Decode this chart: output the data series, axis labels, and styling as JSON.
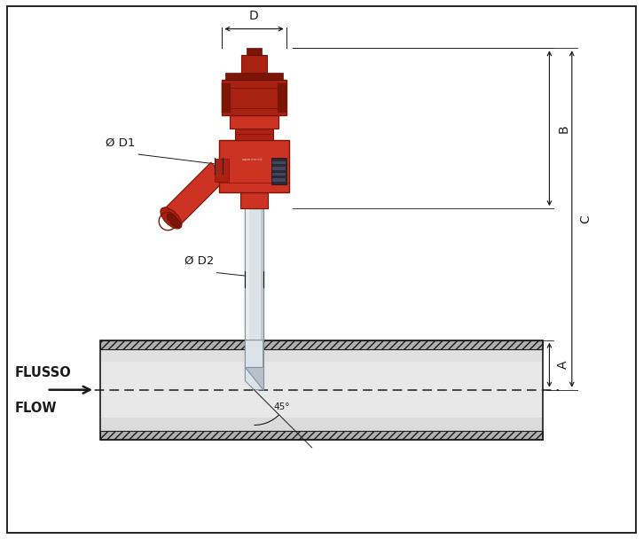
{
  "bg_color": "#ffffff",
  "line_color": "#1a1a1a",
  "dim_line_color": "#1a1a1a",
  "pipe_fill_light": "#e8e8e8",
  "pipe_fill_mid": "#d0d0d0",
  "pipe_stroke": "#444444",
  "red_bright": "#cc3322",
  "red_mid": "#aa2211",
  "red_dark": "#7a1508",
  "red_shadow": "#5a0f05",
  "silver_light": "#dde2e6",
  "silver_mid": "#b8c0c8",
  "silver_dark": "#8090a0",
  "hatch_bg": "#999999",
  "flusso_color": "#1a1a1a",
  "arrow_color": "#1a1a1a",
  "labels": {
    "D": "D",
    "D1": "Ø D1",
    "D2": "Ø D2",
    "A": "A",
    "B": "B",
    "C": "C",
    "angle": "45°"
  },
  "fig_width": 7.25,
  "fig_height": 6.08,
  "dpi": 100
}
